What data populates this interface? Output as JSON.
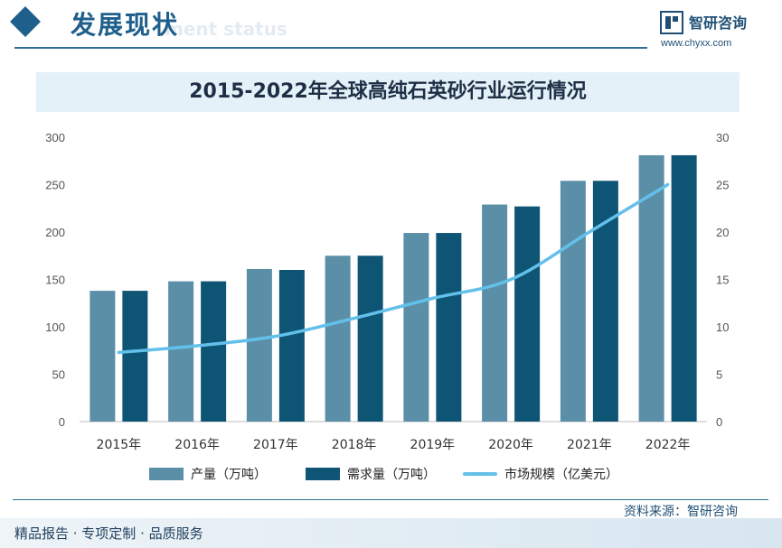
{
  "header": {
    "title": "发展现状",
    "subtitle_en": "ment status",
    "brand_name": "智研咨询",
    "brand_url": "www.chyxx.com"
  },
  "chart_data": {
    "type": "bar",
    "title": "2015-2022年全球高纯石英砂行业运行情况",
    "categories": [
      "2015年",
      "2016年",
      "2017年",
      "2018年",
      "2019年",
      "2020年",
      "2021年",
      "2022年"
    ],
    "series": [
      {
        "name": "产量（万吨）",
        "type": "bar",
        "axis": "left",
        "color": "#5b8fa8",
        "values": [
          138,
          148,
          161,
          175,
          199,
          229,
          254,
          281
        ]
      },
      {
        "name": "需求量（万吨）",
        "type": "bar",
        "axis": "left",
        "color": "#0e5475",
        "values": [
          138,
          148,
          160,
          175,
          199,
          227,
          254,
          281
        ]
      },
      {
        "name": "市场规模（亿美元）",
        "type": "line",
        "axis": "right",
        "color": "#62c0ea",
        "values": [
          7.3,
          8.0,
          9.0,
          10.9,
          13.0,
          15.0,
          20.0,
          25.0
        ]
      }
    ],
    "ylim_left": [
      0,
      300
    ],
    "ylim_right": [
      0,
      30
    ],
    "yticks_left": [
      "0",
      "50",
      "100",
      "150",
      "200",
      "250",
      "300"
    ],
    "yticks_right": [
      "0",
      "5",
      "10",
      "15",
      "20",
      "25",
      "30"
    ],
    "grid": false,
    "legend_position": "bottom"
  },
  "footer": {
    "source": "资料来源：智研咨询",
    "slogan": "精品报告 · 专项定制 · 品质服务"
  }
}
